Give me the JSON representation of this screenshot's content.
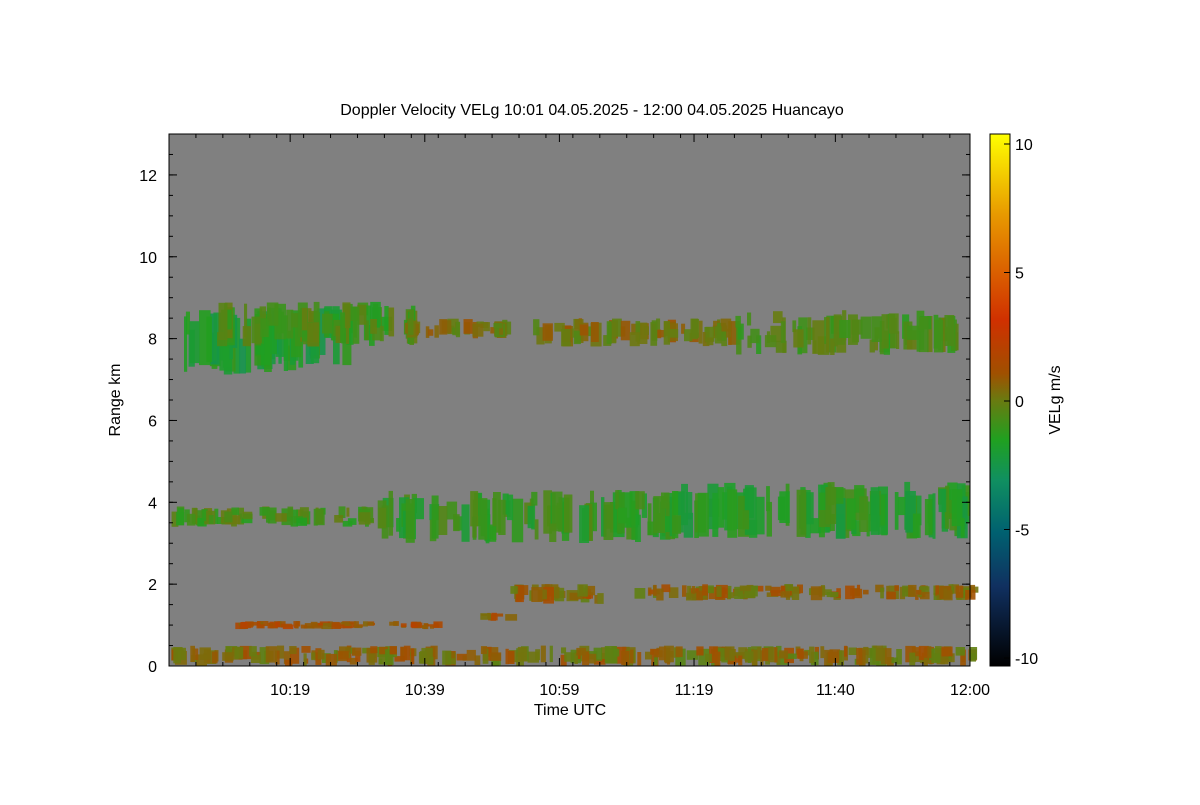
{
  "chart_data": {
    "type": "heatmap",
    "title": "Doppler Velocity VELg   10:01 04.05.2025 - 12:00 04.05.2025 Huancayo",
    "xlabel": "Time UTC",
    "ylabel": "Range km",
    "colorbar_label": "VELg m/s",
    "x_ticks": [
      "10:19",
      "10:39",
      "10:59",
      "11:19",
      "11:40",
      "12:00"
    ],
    "y_ticks": [
      "0",
      "2",
      "4",
      "6",
      "8",
      "10",
      "12"
    ],
    "colorbar_ticks": [
      "10",
      "5",
      "0",
      "-5",
      "-10"
    ],
    "ylim": [
      0,
      13
    ],
    "clim": [
      -10,
      10
    ],
    "colormap": [
      {
        "v": 10,
        "color": "#ffff00"
      },
      {
        "v": 7,
        "color": "#e89a00"
      },
      {
        "v": 3,
        "color": "#d03000"
      },
      {
        "v": 1,
        "color": "#a05000"
      },
      {
        "v": 0,
        "color": "#6a7a10"
      },
      {
        "v": -1.5,
        "color": "#20a020"
      },
      {
        "v": -3,
        "color": "#109060"
      },
      {
        "v": -5,
        "color": "#006070"
      },
      {
        "v": -7,
        "color": "#103060"
      },
      {
        "v": -10,
        "color": "#000000"
      }
    ],
    "background_color": "#808080",
    "echo_layers": [
      {
        "name": "",
        "t_start": "10:01",
        "t_end": "10:27",
        "range_km": [
          7.1,
          8.8
        ],
        "velocity": -1.8
      },
      {
        "name": "",
        "t_start": "10:08",
        "t_end": "10:37",
        "range_km": [
          7.8,
          8.9
        ],
        "velocity": -0.8
      },
      {
        "name": "",
        "t_start": "10:36",
        "t_end": "10:51",
        "range_km": [
          8.0,
          8.5
        ],
        "velocity": 0.3
      },
      {
        "name": "",
        "t_start": "10:55",
        "t_end": "11:25",
        "range_km": [
          7.8,
          8.5
        ],
        "velocity": 0.2
      },
      {
        "name": "",
        "t_start": "11:25",
        "t_end": "11:58",
        "range_km": [
          7.6,
          8.7
        ],
        "velocity": -0.6
      },
      {
        "name": "",
        "t_start": "10:01",
        "t_end": "10:31",
        "range_km": [
          3.4,
          3.9
        ],
        "velocity": -0.7
      },
      {
        "name": "",
        "t_start": "10:32",
        "t_end": "11:15",
        "range_km": [
          3.0,
          4.3
        ],
        "velocity": -1.2
      },
      {
        "name": "",
        "t_start": "11:15",
        "t_end": "12:00",
        "range_km": [
          3.1,
          4.5
        ],
        "velocity": -1.5
      },
      {
        "name": "",
        "t_start": "10:51",
        "t_end": "11:05",
        "range_km": [
          1.5,
          2.0
        ],
        "velocity": 0.6
      },
      {
        "name": "",
        "t_start": "11:10",
        "t_end": "12:00",
        "range_km": [
          1.6,
          2.0
        ],
        "velocity": 0.5
      },
      {
        "name": "",
        "t_start": "10:10",
        "t_end": "10:41",
        "range_km": [
          0.9,
          1.1
        ],
        "velocity": 1.2
      },
      {
        "name": "",
        "t_start": "10:47",
        "t_end": "10:51",
        "range_km": [
          1.1,
          1.3
        ],
        "velocity": 1.0
      },
      {
        "name": "",
        "t_start": "10:01",
        "t_end": "12:00",
        "range_km": [
          0.0,
          0.5
        ],
        "velocity": 0.4
      }
    ]
  }
}
